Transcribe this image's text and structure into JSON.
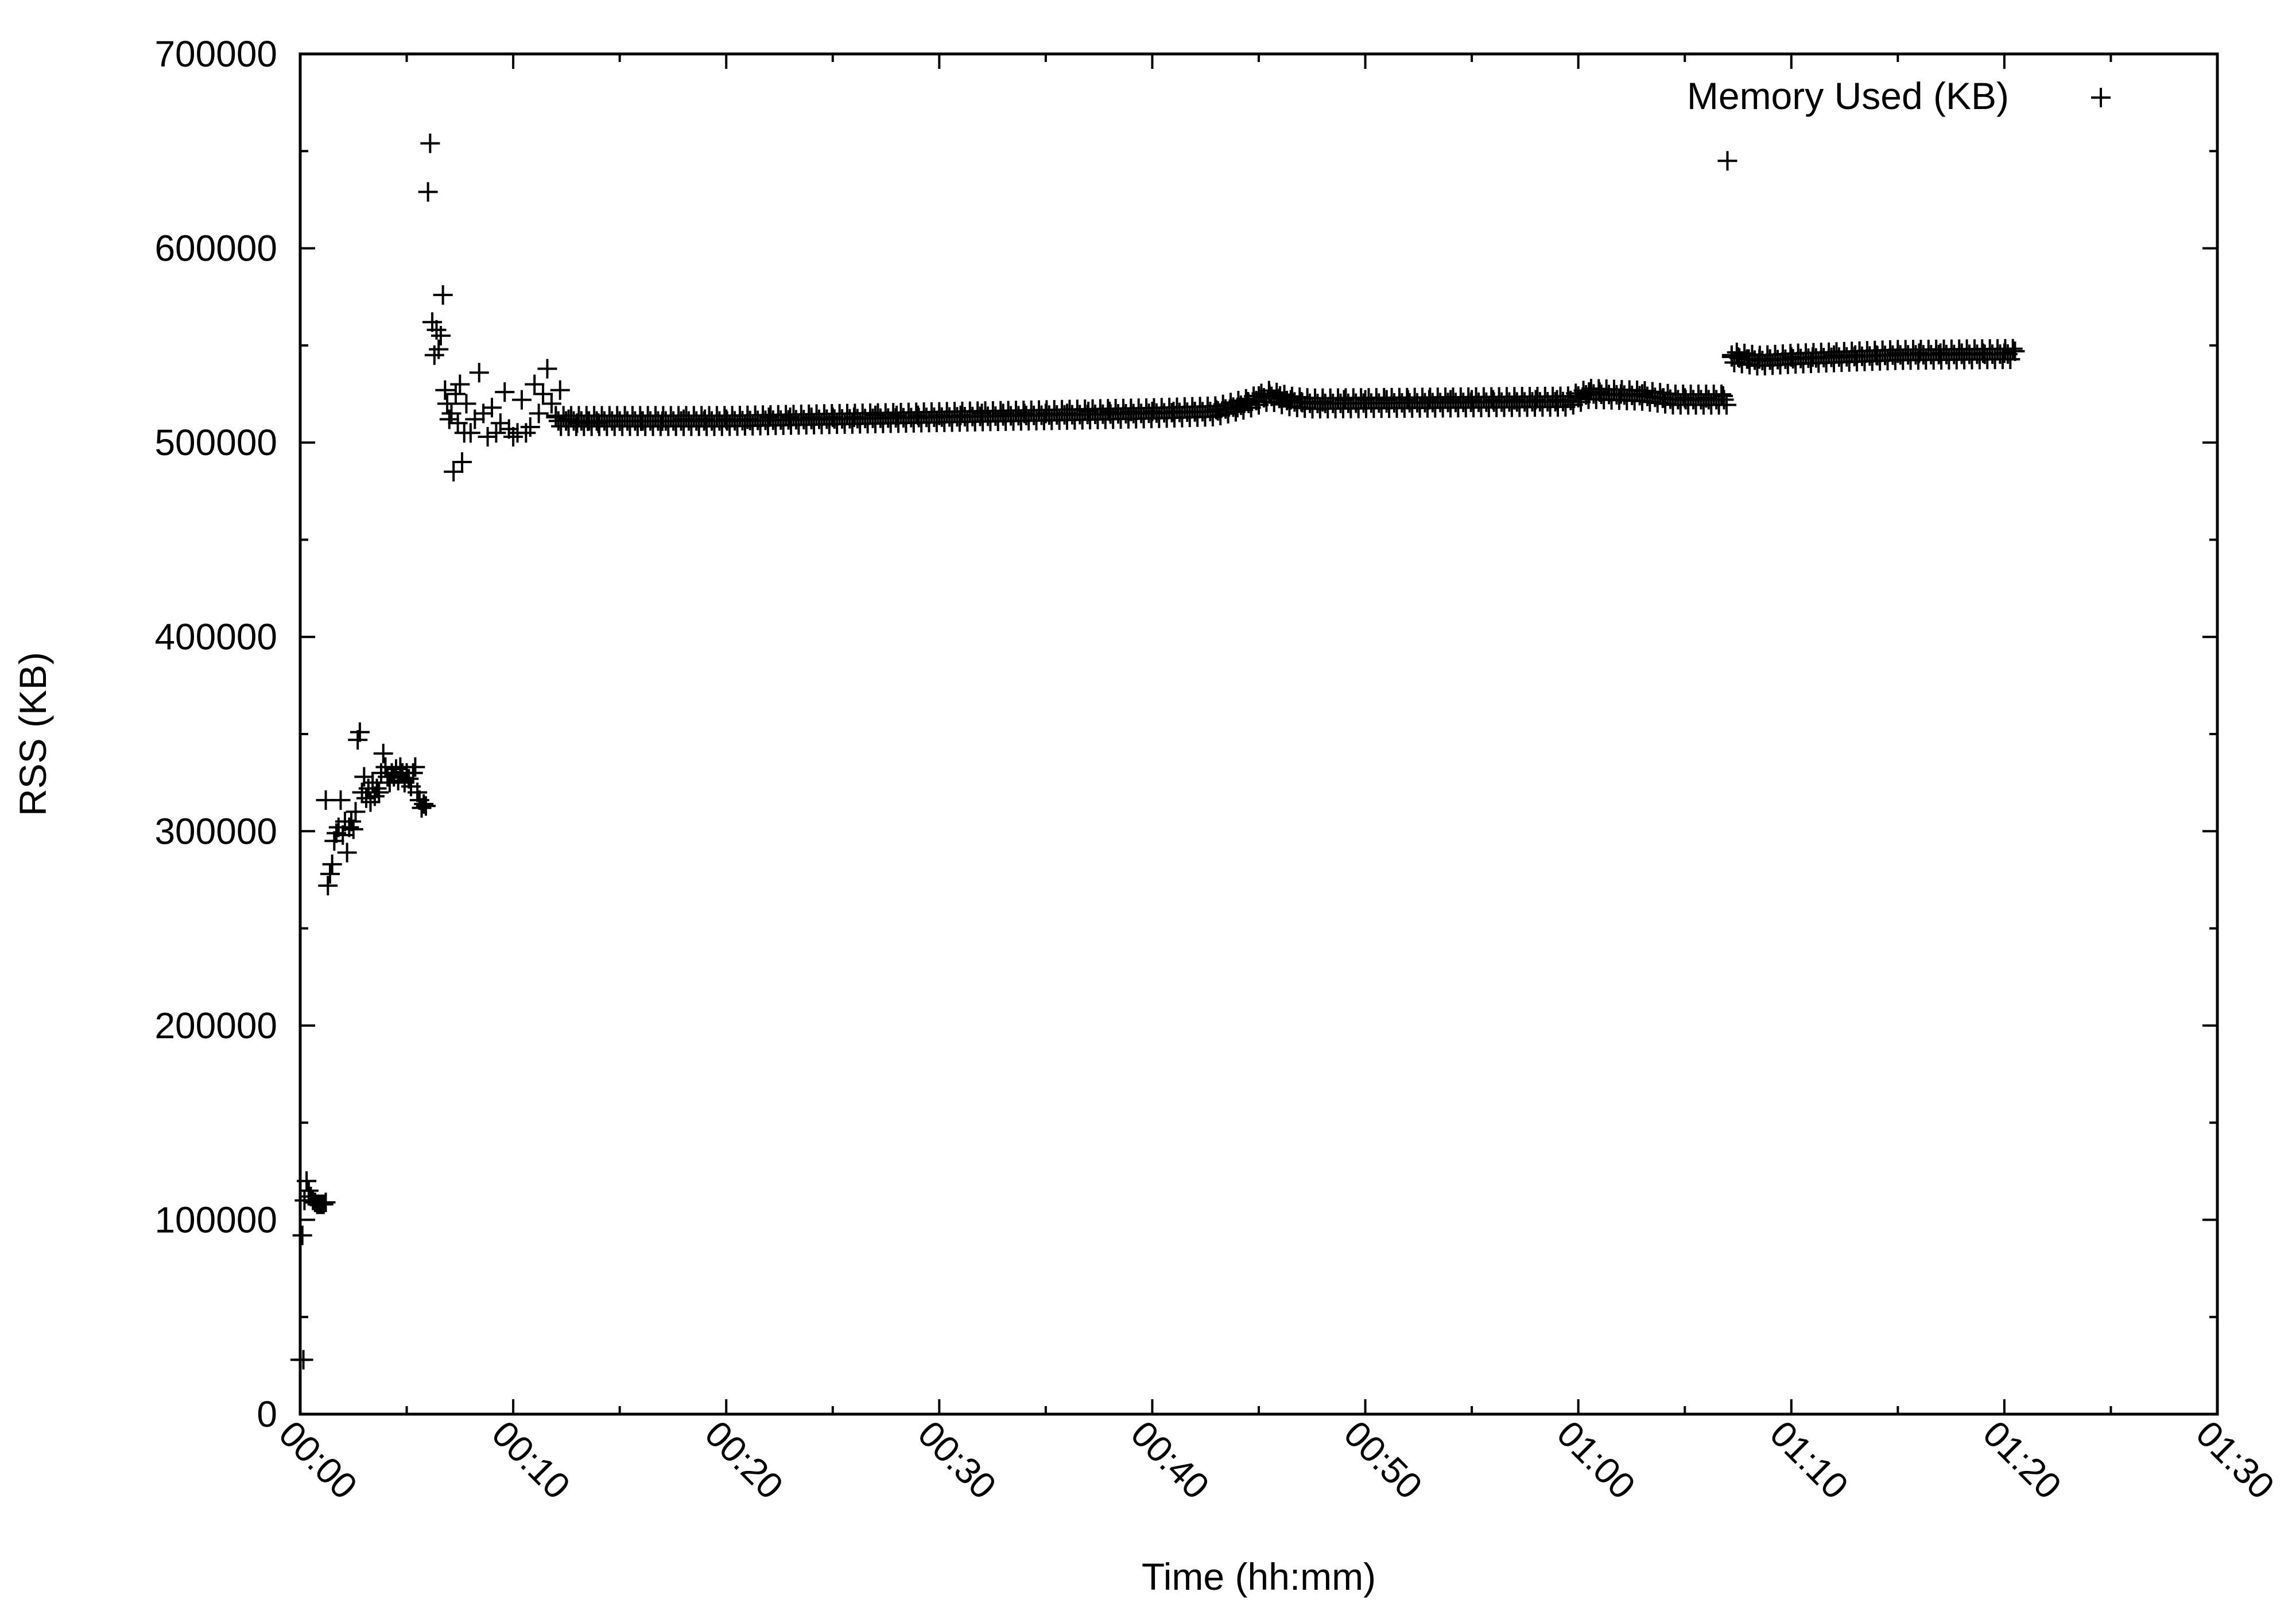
{
  "chart_data": {
    "type": "scatter",
    "xlabel": "Time (hh:mm)",
    "ylabel": "RSS (KB)",
    "xlim": [
      0,
      90
    ],
    "ylim": [
      0,
      700000
    ],
    "x_unit": "minutes",
    "x_ticks": [
      {
        "value": 0,
        "label": "00:00"
      },
      {
        "value": 10,
        "label": "00:10"
      },
      {
        "value": 20,
        "label": "00:20"
      },
      {
        "value": 30,
        "label": "00:30"
      },
      {
        "value": 40,
        "label": "00:40"
      },
      {
        "value": 50,
        "label": "00:50"
      },
      {
        "value": 60,
        "label": "01:00"
      },
      {
        "value": 70,
        "label": "01:10"
      },
      {
        "value": 80,
        "label": "01:20"
      },
      {
        "value": 90,
        "label": "01:30"
      }
    ],
    "y_ticks": [
      {
        "value": 0,
        "label": "0"
      },
      {
        "value": 100000,
        "label": "100000"
      },
      {
        "value": 200000,
        "label": "200000"
      },
      {
        "value": 300000,
        "label": "300000"
      },
      {
        "value": 400000,
        "label": "400000"
      },
      {
        "value": 500000,
        "label": "500000"
      },
      {
        "value": 600000,
        "label": "600000"
      },
      {
        "value": 700000,
        "label": "700000"
      }
    ],
    "legend": {
      "position": "top-right",
      "entries": [
        {
          "name": "Memory Used (KB)",
          "marker": "plus"
        }
      ]
    },
    "color": "#000000",
    "series": [
      {
        "name": "Memory Used (KB)",
        "points": [
          [
            0.0,
            28000
          ],
          [
            0.15,
            28000
          ],
          [
            0.1,
            92000
          ],
          [
            0.2,
            110000
          ],
          [
            0.3,
            120000
          ],
          [
            0.4,
            115000
          ],
          [
            0.5,
            112000
          ],
          [
            0.6,
            110000
          ],
          [
            0.7,
            109000
          ],
          [
            0.8,
            108000
          ],
          [
            0.9,
            108000
          ],
          [
            1.0,
            108000
          ],
          [
            1.1,
            108000
          ],
          [
            1.2,
            109000
          ],
          [
            1.2,
            316000
          ],
          [
            1.3,
            272000
          ],
          [
            1.4,
            278000
          ],
          [
            1.5,
            283000
          ],
          [
            1.6,
            295000
          ],
          [
            1.7,
            299000
          ],
          [
            1.8,
            302000
          ],
          [
            1.9,
            316000
          ],
          [
            2.0,
            298000
          ],
          [
            2.1,
            305000
          ],
          [
            2.2,
            289000
          ],
          [
            2.3,
            302000
          ],
          [
            2.4,
            305000
          ],
          [
            2.5,
            301000
          ],
          [
            2.6,
            310000
          ],
          [
            2.7,
            347000
          ],
          [
            2.8,
            351000
          ],
          [
            2.9,
            320000
          ],
          [
            3.0,
            328000
          ],
          [
            3.1,
            317000
          ],
          [
            3.2,
            322000
          ],
          [
            3.3,
            315000
          ],
          [
            3.4,
            325000
          ],
          [
            3.5,
            318000
          ],
          [
            3.6,
            322000
          ],
          [
            3.7,
            320000
          ],
          [
            3.8,
            330000
          ],
          [
            3.9,
            340000
          ],
          [
            4.0,
            333000
          ],
          [
            4.1,
            328000
          ],
          [
            4.2,
            325000
          ],
          [
            4.3,
            330000
          ],
          [
            4.4,
            328000
          ],
          [
            4.5,
            332000
          ],
          [
            4.6,
            326000
          ],
          [
            4.7,
            333000
          ],
          [
            4.8,
            330000
          ],
          [
            4.9,
            325000
          ],
          [
            5.0,
            330000
          ],
          [
            5.1,
            327000
          ],
          [
            5.2,
            323000
          ],
          [
            5.3,
            330000
          ],
          [
            5.4,
            333000
          ],
          [
            5.5,
            320000
          ],
          [
            5.6,
            316000
          ],
          [
            5.7,
            312000
          ],
          [
            5.8,
            314000
          ],
          [
            5.9,
            313000
          ],
          [
            6.0,
            629000
          ],
          [
            6.1,
            654000
          ],
          [
            6.2,
            562000
          ],
          [
            6.3,
            545000
          ],
          [
            6.4,
            558000
          ],
          [
            6.5,
            548000
          ],
          [
            6.6,
            555000
          ],
          [
            6.7,
            576000
          ],
          [
            6.8,
            527000
          ],
          [
            6.9,
            520000
          ],
          [
            7.0,
            512000
          ],
          [
            7.1,
            515000
          ],
          [
            7.2,
            485000
          ],
          [
            7.3,
            525000
          ],
          [
            7.4,
            510000
          ],
          [
            7.5,
            530000
          ],
          [
            7.6,
            490000
          ],
          [
            7.7,
            505000
          ],
          [
            7.8,
            520000
          ],
          [
            8.0,
            505000
          ],
          [
            8.2,
            512000
          ],
          [
            8.4,
            536000
          ],
          [
            8.6,
            515000
          ],
          [
            8.8,
            503000
          ],
          [
            9.0,
            518000
          ],
          [
            9.2,
            505000
          ],
          [
            9.4,
            510000
          ],
          [
            9.6,
            526000
          ],
          [
            9.8,
            507000
          ],
          [
            10.0,
            503000
          ],
          [
            10.2,
            505000
          ],
          [
            10.4,
            522000
          ],
          [
            10.6,
            505000
          ],
          [
            10.8,
            508000
          ],
          [
            11.0,
            530000
          ],
          [
            11.2,
            515000
          ],
          [
            11.4,
            525000
          ],
          [
            11.6,
            538000
          ],
          [
            11.8,
            520000
          ],
          [
            12.0,
            513000
          ],
          [
            12.2,
            527000
          ],
          [
            12.6,
            512000
          ],
          [
            13.0,
            510000
          ],
          [
            13.5,
            511000
          ],
          [
            14.0,
            510000
          ],
          [
            15.0,
            511000
          ],
          [
            16.0,
            511000
          ],
          [
            17.0,
            511000
          ],
          [
            18.0,
            512000
          ],
          [
            19.0,
            512000
          ],
          [
            20.0,
            512000
          ],
          [
            21.0,
            512000
          ],
          [
            22.0,
            513000
          ],
          [
            23.0,
            513000
          ],
          [
            24.0,
            513000
          ],
          [
            25.0,
            513000
          ],
          [
            26.0,
            513000
          ],
          [
            27.0,
            514000
          ],
          [
            28.0,
            514000
          ],
          [
            29.0,
            514000
          ],
          [
            30.0,
            514000
          ],
          [
            31.0,
            514000
          ],
          [
            32.0,
            515000
          ],
          [
            33.0,
            515000
          ],
          [
            34.0,
            515000
          ],
          [
            35.0,
            515000
          ],
          [
            36.0,
            515000
          ],
          [
            37.0,
            516000
          ],
          [
            38.0,
            516000
          ],
          [
            39.0,
            516000
          ],
          [
            40.0,
            516000
          ],
          [
            41.0,
            516000
          ],
          [
            42.0,
            516000
          ],
          [
            43.0,
            517000
          ],
          [
            44.0,
            518000
          ],
          [
            44.5,
            521000
          ],
          [
            45.0,
            524000
          ],
          [
            45.5,
            525000
          ],
          [
            46.0,
            524000
          ],
          [
            46.5,
            522000
          ],
          [
            47.0,
            521000
          ],
          [
            48.0,
            521000
          ],
          [
            49.0,
            522000
          ],
          [
            50.0,
            522000
          ],
          [
            51.0,
            522000
          ],
          [
            52.0,
            522000
          ],
          [
            53.0,
            522000
          ],
          [
            54.0,
            522000
          ],
          [
            55.0,
            522000
          ],
          [
            56.0,
            522000
          ],
          [
            57.0,
            522000
          ],
          [
            58.0,
            522000
          ],
          [
            59.0,
            522000
          ],
          [
            60.0,
            524000
          ],
          [
            60.5,
            526000
          ],
          [
            61.0,
            526000
          ],
          [
            62.0,
            525000
          ],
          [
            63.0,
            525000
          ],
          [
            64.0,
            523000
          ],
          [
            65.0,
            523000
          ],
          [
            66.0,
            523000
          ],
          [
            66.8,
            524000
          ],
          [
            67.0,
            645000
          ],
          [
            67.2,
            545000
          ],
          [
            67.5,
            544000
          ],
          [
            68.0,
            543000
          ],
          [
            68.5,
            543000
          ],
          [
            69.0,
            543000
          ],
          [
            70.0,
            544000
          ],
          [
            71.0,
            544000
          ],
          [
            72.0,
            545000
          ],
          [
            73.0,
            545000
          ],
          [
            74.0,
            545000
          ],
          [
            75.0,
            546000
          ],
          [
            76.0,
            546000
          ],
          [
            77.0,
            546000
          ],
          [
            78.0,
            546000
          ],
          [
            79.0,
            546000
          ],
          [
            80.0,
            546000
          ],
          [
            80.5,
            547000
          ]
        ]
      }
    ],
    "dense_segments": [
      {
        "x_start": 12.0,
        "x_end": 67.0,
        "path": [
          [
            12.0,
            512000
          ],
          [
            20,
            512000
          ],
          [
            30,
            514000
          ],
          [
            40,
            516000
          ],
          [
            43,
            517000
          ],
          [
            44.5,
            521000
          ],
          [
            45.5,
            525000
          ],
          [
            46.5,
            522000
          ],
          [
            47.5,
            521000
          ],
          [
            59.5,
            522000
          ],
          [
            60.5,
            526000
          ],
          [
            63.0,
            525000
          ],
          [
            64.5,
            523000
          ],
          [
            67.0,
            523000
          ]
        ]
      },
      {
        "x_start": 67.2,
        "x_end": 80.5,
        "path": [
          [
            67.2,
            545000
          ],
          [
            68.5,
            543000
          ],
          [
            70,
            544000
          ],
          [
            75,
            546000
          ],
          [
            80.5,
            546500
          ]
        ]
      }
    ]
  }
}
